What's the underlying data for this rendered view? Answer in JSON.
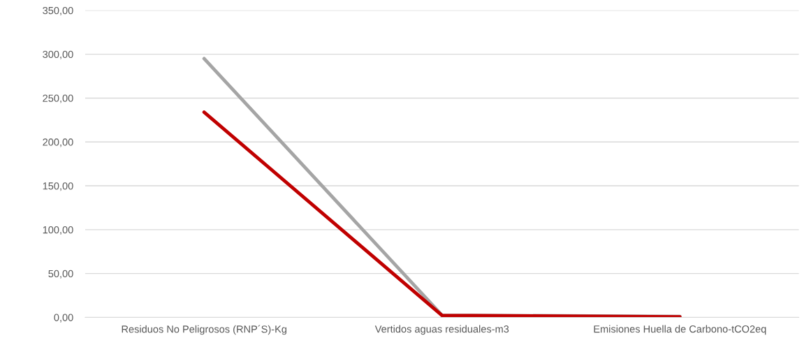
{
  "chart_data": {
    "type": "line",
    "categories": [
      "Residuos No Peligrosos (RNP´S)-Kg",
      "Vertidos aguas residuales-m3",
      "Emisiones Huella de Carbono-tCO2eq"
    ],
    "series": [
      {
        "color": "#a5a5a5",
        "values": [
          295,
          2.5,
          1
        ]
      },
      {
        "color": "#c00000",
        "values": [
          234,
          2.2,
          0.6
        ]
      }
    ],
    "ylim": [
      0,
      350
    ],
    "yticks": [
      {
        "value": 0,
        "label": "0,00"
      },
      {
        "value": 50,
        "label": "50,00"
      },
      {
        "value": 100,
        "label": "100,00"
      },
      {
        "value": 150,
        "label": "150,00"
      },
      {
        "value": 200,
        "label": "200,00"
      },
      {
        "value": 250,
        "label": "250,00"
      },
      {
        "value": 300,
        "label": "300,00"
      },
      {
        "value": 350,
        "label": "350,00"
      }
    ],
    "grid": "y",
    "marker": "none",
    "line_style": "solid"
  }
}
